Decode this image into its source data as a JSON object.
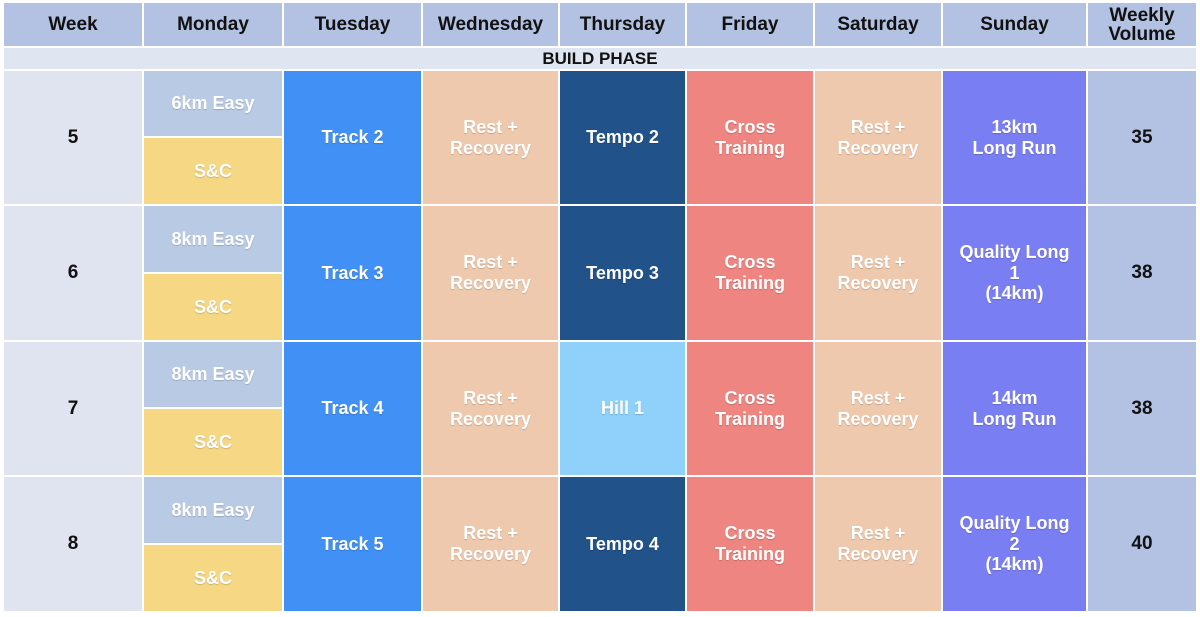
{
  "header": {
    "week": "Week",
    "monday": "Monday",
    "tuesday": "Tuesday",
    "wednesday": "Wednesday",
    "thursday": "Thursday",
    "friday": "Friday",
    "saturday": "Saturday",
    "sunday": "Sunday",
    "weekly_volume": "Weekly\nVolume"
  },
  "phase": "BUILD PHASE",
  "weeks": [
    {
      "week": "5",
      "monday_easy": "6km Easy",
      "monday_snc": "S&C",
      "tuesday": "Track 2",
      "wednesday": "Rest +\nRecovery",
      "thursday": "Tempo 2",
      "friday": "Cross\nTraining",
      "saturday": "Rest +\nRecovery",
      "sunday": "13km\nLong Run",
      "volume": "35"
    },
    {
      "week": "6",
      "monday_easy": "8km Easy",
      "monday_snc": "S&C",
      "tuesday": "Track 3",
      "wednesday": "Rest +\nRecovery",
      "thursday": "Tempo 3",
      "friday": "Cross\nTraining",
      "saturday": "Rest +\nRecovery",
      "sunday": "Quality Long\n1\n(14km)",
      "volume": "38"
    },
    {
      "week": "7",
      "monday_easy": "8km Easy",
      "monday_snc": "S&C",
      "tuesday": "Track 4",
      "wednesday": "Rest +\nRecovery",
      "thursday": "Hill 1",
      "friday": "Cross\nTraining",
      "saturday": "Rest +\nRecovery",
      "sunday": "14km\nLong Run",
      "volume": "38"
    },
    {
      "week": "8",
      "monday_easy": "8km Easy",
      "monday_snc": "S&C",
      "tuesday": "Track 5",
      "wednesday": "Rest +\nRecovery",
      "thursday": "Tempo 4",
      "friday": "Cross\nTraining",
      "saturday": "Rest +\nRecovery",
      "sunday": "Quality Long\n2\n(14km)",
      "volume": "40"
    }
  ],
  "colors": {
    "header": "#b3c2e3",
    "easy_run": "#b9cbe4",
    "strength_conditioning": "#f6d784",
    "track": "#4190f5",
    "rest": "#efc9ad",
    "tempo": "#22528a",
    "hill": "#8fd1fb",
    "cross_training": "#ee8580",
    "long_run": "#7a7ef3"
  }
}
